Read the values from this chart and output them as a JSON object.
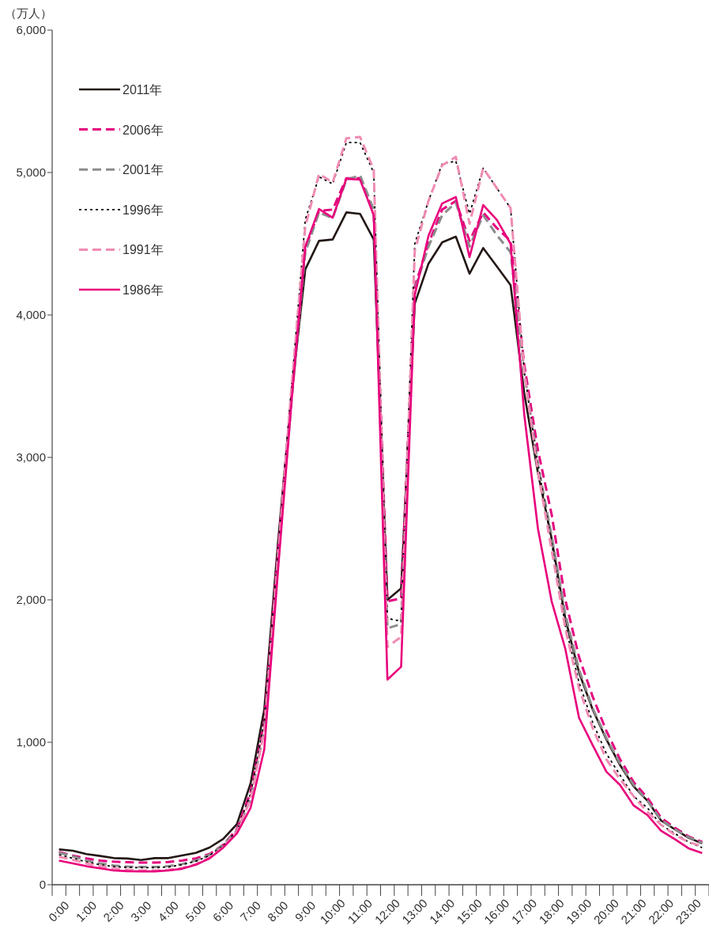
{
  "chart_data": {
    "type": "line",
    "ylabel": "（万人）",
    "categories": [
      "0:00",
      null,
      "1:00",
      null,
      "2:00",
      null,
      "3:00",
      null,
      "4:00",
      null,
      "5:00",
      null,
      "6:00",
      null,
      "7:00",
      null,
      "8:00",
      null,
      "9:00",
      null,
      "10:00",
      null,
      "11:00",
      null,
      "12:00",
      null,
      "13:00",
      null,
      "14:00",
      null,
      "15:00",
      null,
      "16:00",
      null,
      "17:00",
      null,
      "18:00",
      null,
      "19:00",
      null,
      "20:00",
      null,
      "21:00",
      null,
      "22:00",
      null,
      "23:00",
      null
    ],
    "ylim": [
      0,
      6000
    ],
    "yticks": [
      0,
      {
        "value": 1000,
        "label": "1,000"
      },
      {
        "value": 2000,
        "label": "2,000"
      },
      {
        "value": 3000,
        "label": "3,000"
      },
      {
        "value": 4000,
        "label": "4,000"
      },
      {
        "value": 5000,
        "label": "5,000"
      },
      {
        "value": 6000,
        "label": "6,000"
      }
    ],
    "grid": false,
    "legend": "top left",
    "series": [
      {
        "name": "2011年",
        "color": "#231815",
        "line_style": "solid",
        "values": [
          248,
          239,
          215,
          202,
          187,
          184,
          174,
          187,
          187,
          206,
          224,
          261,
          322,
          425,
          711,
          1230,
          2400,
          3450,
          4320,
          4520,
          4530,
          4720,
          4710,
          4530,
          2000,
          2080,
          4080,
          4360,
          4510,
          4550,
          4290,
          4470,
          4340,
          4210,
          3450,
          2890,
          2430,
          1870,
          1490,
          1230,
          1020,
          840,
          690,
          590,
          450,
          390,
          330,
          290
        ]
      },
      {
        "name": "2006年",
        "color": "#e4007f",
        "line_style": "dashed",
        "values": [
          230,
          205,
          185,
          170,
          162,
          158,
          155,
          155,
          160,
          170,
          185,
          215,
          280,
          390,
          650,
          1150,
          2350,
          3450,
          4470,
          4730,
          4740,
          4960,
          4960,
          4720,
          1990,
          2010,
          4200,
          4500,
          4740,
          4800,
          4520,
          4720,
          4610,
          4520,
          3650,
          3050,
          2600,
          2000,
          1600,
          1320,
          1080,
          880,
          720,
          610,
          470,
          400,
          340,
          300
        ]
      },
      {
        "name": "2001年",
        "color": "#8c8c8c",
        "line_style": "dashed",
        "values": [
          225,
          200,
          170,
          150,
          135,
          128,
          125,
          125,
          130,
          145,
          170,
          210,
          280,
          380,
          600,
          1100,
          2300,
          3400,
          4440,
          4720,
          4680,
          4950,
          4980,
          4740,
          1800,
          1830,
          4180,
          4480,
          4700,
          4790,
          4480,
          4700,
          4560,
          4440,
          3600,
          2950,
          2450,
          1900,
          1510,
          1240,
          1030,
          850,
          700,
          590,
          455,
          390,
          335,
          294
        ]
      },
      {
        "name": "1996年",
        "color": "#000000",
        "line_style": "dotted",
        "values": [
          210,
          185,
          160,
          140,
          128,
          122,
          120,
          120,
          125,
          140,
          165,
          205,
          275,
          380,
          640,
          1150,
          2350,
          3500,
          4670,
          4970,
          4920,
          5210,
          5210,
          5000,
          1870,
          1850,
          4500,
          4800,
          5060,
          5080,
          4710,
          5030,
          4890,
          4750,
          3600,
          2950,
          2400,
          1820,
          1420,
          1140,
          920,
          770,
          620,
          540,
          420,
          360,
          300,
          260
        ]
      },
      {
        "name": "1991年",
        "color": "#f08cb4",
        "line_style": "dashed",
        "values": [
          196,
          175,
          150,
          130,
          115,
          105,
          100,
          100,
          105,
          118,
          145,
          190,
          265,
          375,
          600,
          1080,
          2300,
          3500,
          4620,
          4990,
          4930,
          5240,
          5250,
          5020,
          1670,
          1740,
          4450,
          4800,
          5050,
          5110,
          4640,
          5030,
          4890,
          4750,
          3600,
          2900,
          2350,
          1800,
          1380,
          1100,
          880,
          740,
          620,
          510,
          420,
          350,
          300,
          270
        ]
      },
      {
        "name": "1986年",
        "color": "#e8007c",
        "line_style": "solid",
        "values": [
          170,
          150,
          130,
          115,
          100,
          95,
          94,
          94,
          100,
          112,
          140,
          185,
          260,
          360,
          540,
          950,
          2200,
          3400,
          4480,
          4744,
          4683,
          4956,
          4950,
          4700,
          1440,
          1530,
          4140,
          4556,
          4783,
          4828,
          4406,
          4772,
          4667,
          4500,
          3300,
          2500,
          1990,
          1656,
          1172,
          980,
          794,
          700,
          556,
          489,
          378,
          320,
          256,
          222
        ]
      }
    ]
  }
}
